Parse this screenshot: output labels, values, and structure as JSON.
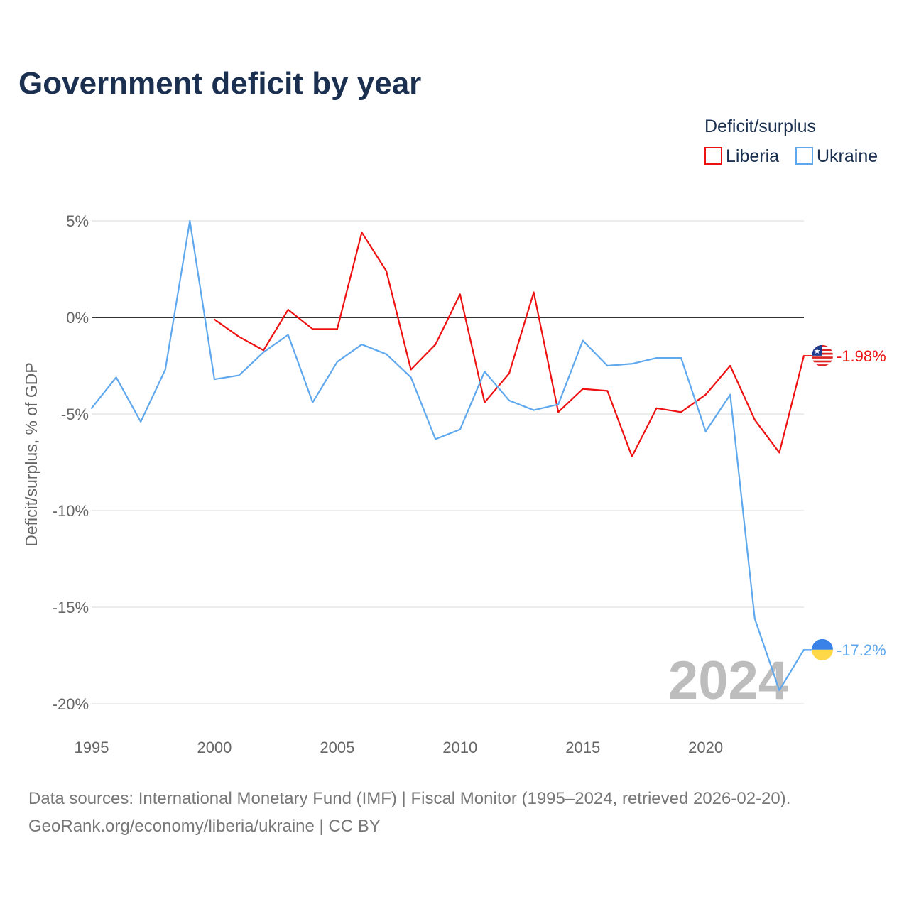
{
  "title": "Government deficit by year",
  "legend": {
    "title": "Deficit/surplus",
    "items": [
      "Liberia",
      "Ukraine"
    ]
  },
  "year_label": "2024",
  "source_line1": "Data sources: International Monetary Fund (IMF) | Fiscal Monitor (1995–2024, retrieved 2026-02-20).",
  "source_line2": "GeoRank.org/economy/liberia/ukraine | CC BY",
  "chart_data": {
    "type": "line",
    "title": "Government deficit by year",
    "xlabel": "",
    "ylabel": "Deficit/surplus, % of GDP",
    "xlim": [
      1995,
      2024
    ],
    "ylim": [
      -20,
      5
    ],
    "x_ticks": [
      1995,
      2000,
      2005,
      2010,
      2015,
      2020
    ],
    "y_ticks": [
      5,
      0,
      -5,
      -10,
      -15,
      -20
    ],
    "y_tick_labels": [
      "5%",
      "0%",
      "-5%",
      "-10%",
      "-15%",
      "-20%"
    ],
    "x_tick_labels": [
      "1995",
      "2000",
      "2005",
      "2010",
      "2015",
      "2020"
    ],
    "grid": true,
    "legend_position": "top-right",
    "series": [
      {
        "name": "Liberia",
        "color": "#ee1111",
        "end_label": "-1.98%",
        "x": [
          2000,
          2001,
          2002,
          2003,
          2004,
          2005,
          2006,
          2007,
          2008,
          2009,
          2010,
          2011,
          2012,
          2013,
          2014,
          2015,
          2016,
          2017,
          2018,
          2019,
          2020,
          2021,
          2022,
          2023,
          2024
        ],
        "values": [
          -0.1,
          -1.0,
          -1.7,
          0.4,
          -0.6,
          -0.6,
          4.4,
          2.4,
          -2.7,
          -1.4,
          1.2,
          -4.4,
          -2.9,
          1.3,
          -4.9,
          -3.7,
          -3.8,
          -7.2,
          -4.7,
          -4.9,
          -4.0,
          -2.5,
          -5.3,
          -7.0,
          -1.98
        ]
      },
      {
        "name": "Ukraine",
        "color": "#5fa8ee",
        "end_label": "-17.2%",
        "x": [
          1995,
          1996,
          1997,
          1998,
          1999,
          2000,
          2001,
          2002,
          2003,
          2004,
          2005,
          2006,
          2007,
          2008,
          2009,
          2010,
          2011,
          2012,
          2013,
          2014,
          2015,
          2016,
          2017,
          2018,
          2019,
          2020,
          2021,
          2022,
          2023,
          2024
        ],
        "values": [
          -4.7,
          -3.1,
          -5.4,
          -2.7,
          5.0,
          -3.2,
          -3.0,
          -1.8,
          -0.9,
          -4.4,
          -2.3,
          -1.4,
          -1.9,
          -3.1,
          -6.3,
          -5.8,
          -2.8,
          -4.3,
          -4.8,
          -4.5,
          -1.2,
          -2.5,
          -2.4,
          -2.1,
          -2.1,
          -5.9,
          -4.0,
          -15.6,
          -19.3,
          -17.2
        ]
      }
    ]
  }
}
